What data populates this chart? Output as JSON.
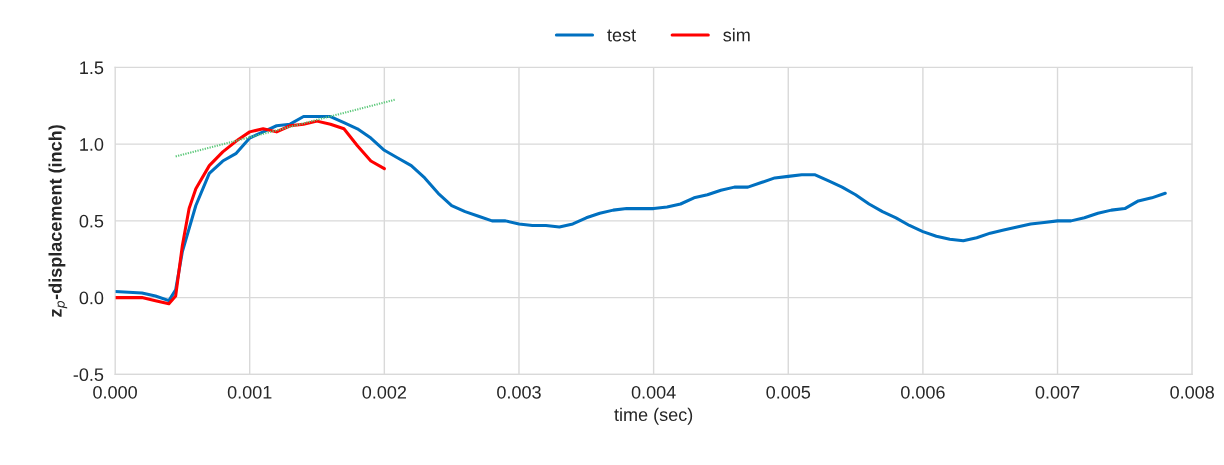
{
  "chart_data": {
    "type": "line",
    "xlabel": "time (sec)",
    "ylabel": "z$_{p}$-displacement (inch)",
    "xlim": [
      0,
      0.008
    ],
    "ylim": [
      -0.5,
      1.5
    ],
    "xticks": [
      {
        "value": 0,
        "label": "0.000"
      },
      {
        "value": 0.001,
        "label": "0.001"
      },
      {
        "value": 0.002,
        "label": "0.002"
      },
      {
        "value": 0.003,
        "label": "0.003"
      },
      {
        "value": 0.004,
        "label": "0.004"
      },
      {
        "value": 0.005,
        "label": "0.005"
      },
      {
        "value": 0.006,
        "label": "0.006"
      },
      {
        "value": 0.007,
        "label": "0.007"
      },
      {
        "value": 0.008,
        "label": "0.008"
      }
    ],
    "yticks": [
      {
        "value": -0.5,
        "label": "-0.5"
      },
      {
        "value": 0,
        "label": "0.0"
      },
      {
        "value": 0.5,
        "label": "0.5"
      },
      {
        "value": 1,
        "label": "1.0"
      },
      {
        "value": 1.5,
        "label": "1.5"
      }
    ],
    "grid": true,
    "legend": "top",
    "marker": "none",
    "line_style": "solid",
    "series": [
      {
        "name": "test",
        "color": "#0070c0",
        "x": [
          0,
          0.0002,
          0.0003,
          0.0004,
          0.00045,
          0.0005,
          0.0006,
          0.0007,
          0.0008,
          0.0009,
          0.001,
          0.0011,
          0.0012,
          0.0013,
          0.0014,
          0.0015,
          0.0016,
          0.0017,
          0.0018,
          0.0019,
          0.002,
          0.0021,
          0.0022,
          0.0023,
          0.0024,
          0.0025,
          0.0026,
          0.0027,
          0.0028,
          0.0029,
          0.003,
          0.0031,
          0.0032,
          0.0033,
          0.0034,
          0.0035,
          0.0036,
          0.0037,
          0.0038,
          0.0039,
          0.004,
          0.0041,
          0.0042,
          0.0043,
          0.0044,
          0.0045,
          0.0046,
          0.0047,
          0.0048,
          0.0049,
          0.005,
          0.0051,
          0.0052,
          0.0053,
          0.0054,
          0.0055,
          0.0056,
          0.0057,
          0.0058,
          0.0059,
          0.006,
          0.0061,
          0.0062,
          0.0063,
          0.0064,
          0.0065,
          0.0066,
          0.0067,
          0.0068,
          0.0069,
          0.007,
          0.0071,
          0.0072,
          0.0073,
          0.0074,
          0.0075,
          0.0076,
          0.0077,
          0.0078
        ],
        "values": [
          0.04,
          0.03,
          0.01,
          -0.02,
          0.05,
          0.3,
          0.6,
          0.81,
          0.89,
          0.94,
          1.04,
          1.08,
          1.12,
          1.13,
          1.18,
          1.18,
          1.18,
          1.14,
          1.1,
          1.04,
          0.96,
          0.91,
          0.86,
          0.78,
          0.68,
          0.6,
          0.56,
          0.53,
          0.5,
          0.5,
          0.48,
          0.47,
          0.47,
          0.46,
          0.48,
          0.52,
          0.55,
          0.57,
          0.58,
          0.58,
          0.58,
          0.59,
          0.61,
          0.65,
          0.67,
          0.7,
          0.72,
          0.72,
          0.75,
          0.78,
          0.79,
          0.8,
          0.8,
          0.76,
          0.72,
          0.67,
          0.61,
          0.56,
          0.52,
          0.47,
          0.43,
          0.4,
          0.38,
          0.37,
          0.39,
          0.42,
          0.44,
          0.46,
          0.48,
          0.49,
          0.5,
          0.5,
          0.52,
          0.55,
          0.57,
          0.58,
          0.63,
          0.65,
          0.68
        ]
      },
      {
        "name": "sim",
        "color": "#ff0000",
        "x": [
          0,
          0.0002,
          0.0003,
          0.0004,
          0.00045,
          0.0005,
          0.00055,
          0.0006,
          0.0007,
          0.0008,
          0.0009,
          0.001,
          0.0011,
          0.0012,
          0.0013,
          0.0014,
          0.0015,
          0.0016,
          0.0017,
          0.0018,
          0.0019,
          0.002
        ],
        "values": [
          0.0,
          0.0,
          -0.02,
          -0.04,
          0.01,
          0.34,
          0.58,
          0.71,
          0.86,
          0.95,
          1.02,
          1.08,
          1.1,
          1.08,
          1.12,
          1.13,
          1.15,
          1.13,
          1.1,
          0.99,
          0.89,
          0.84
        ]
      },
      {
        "type": "line",
        "color": "#5cc87a",
        "line_style": "dotted",
        "x": [
          0.00045,
          0.00208
        ],
        "values": [
          0.92,
          1.29
        ]
      }
    ]
  }
}
